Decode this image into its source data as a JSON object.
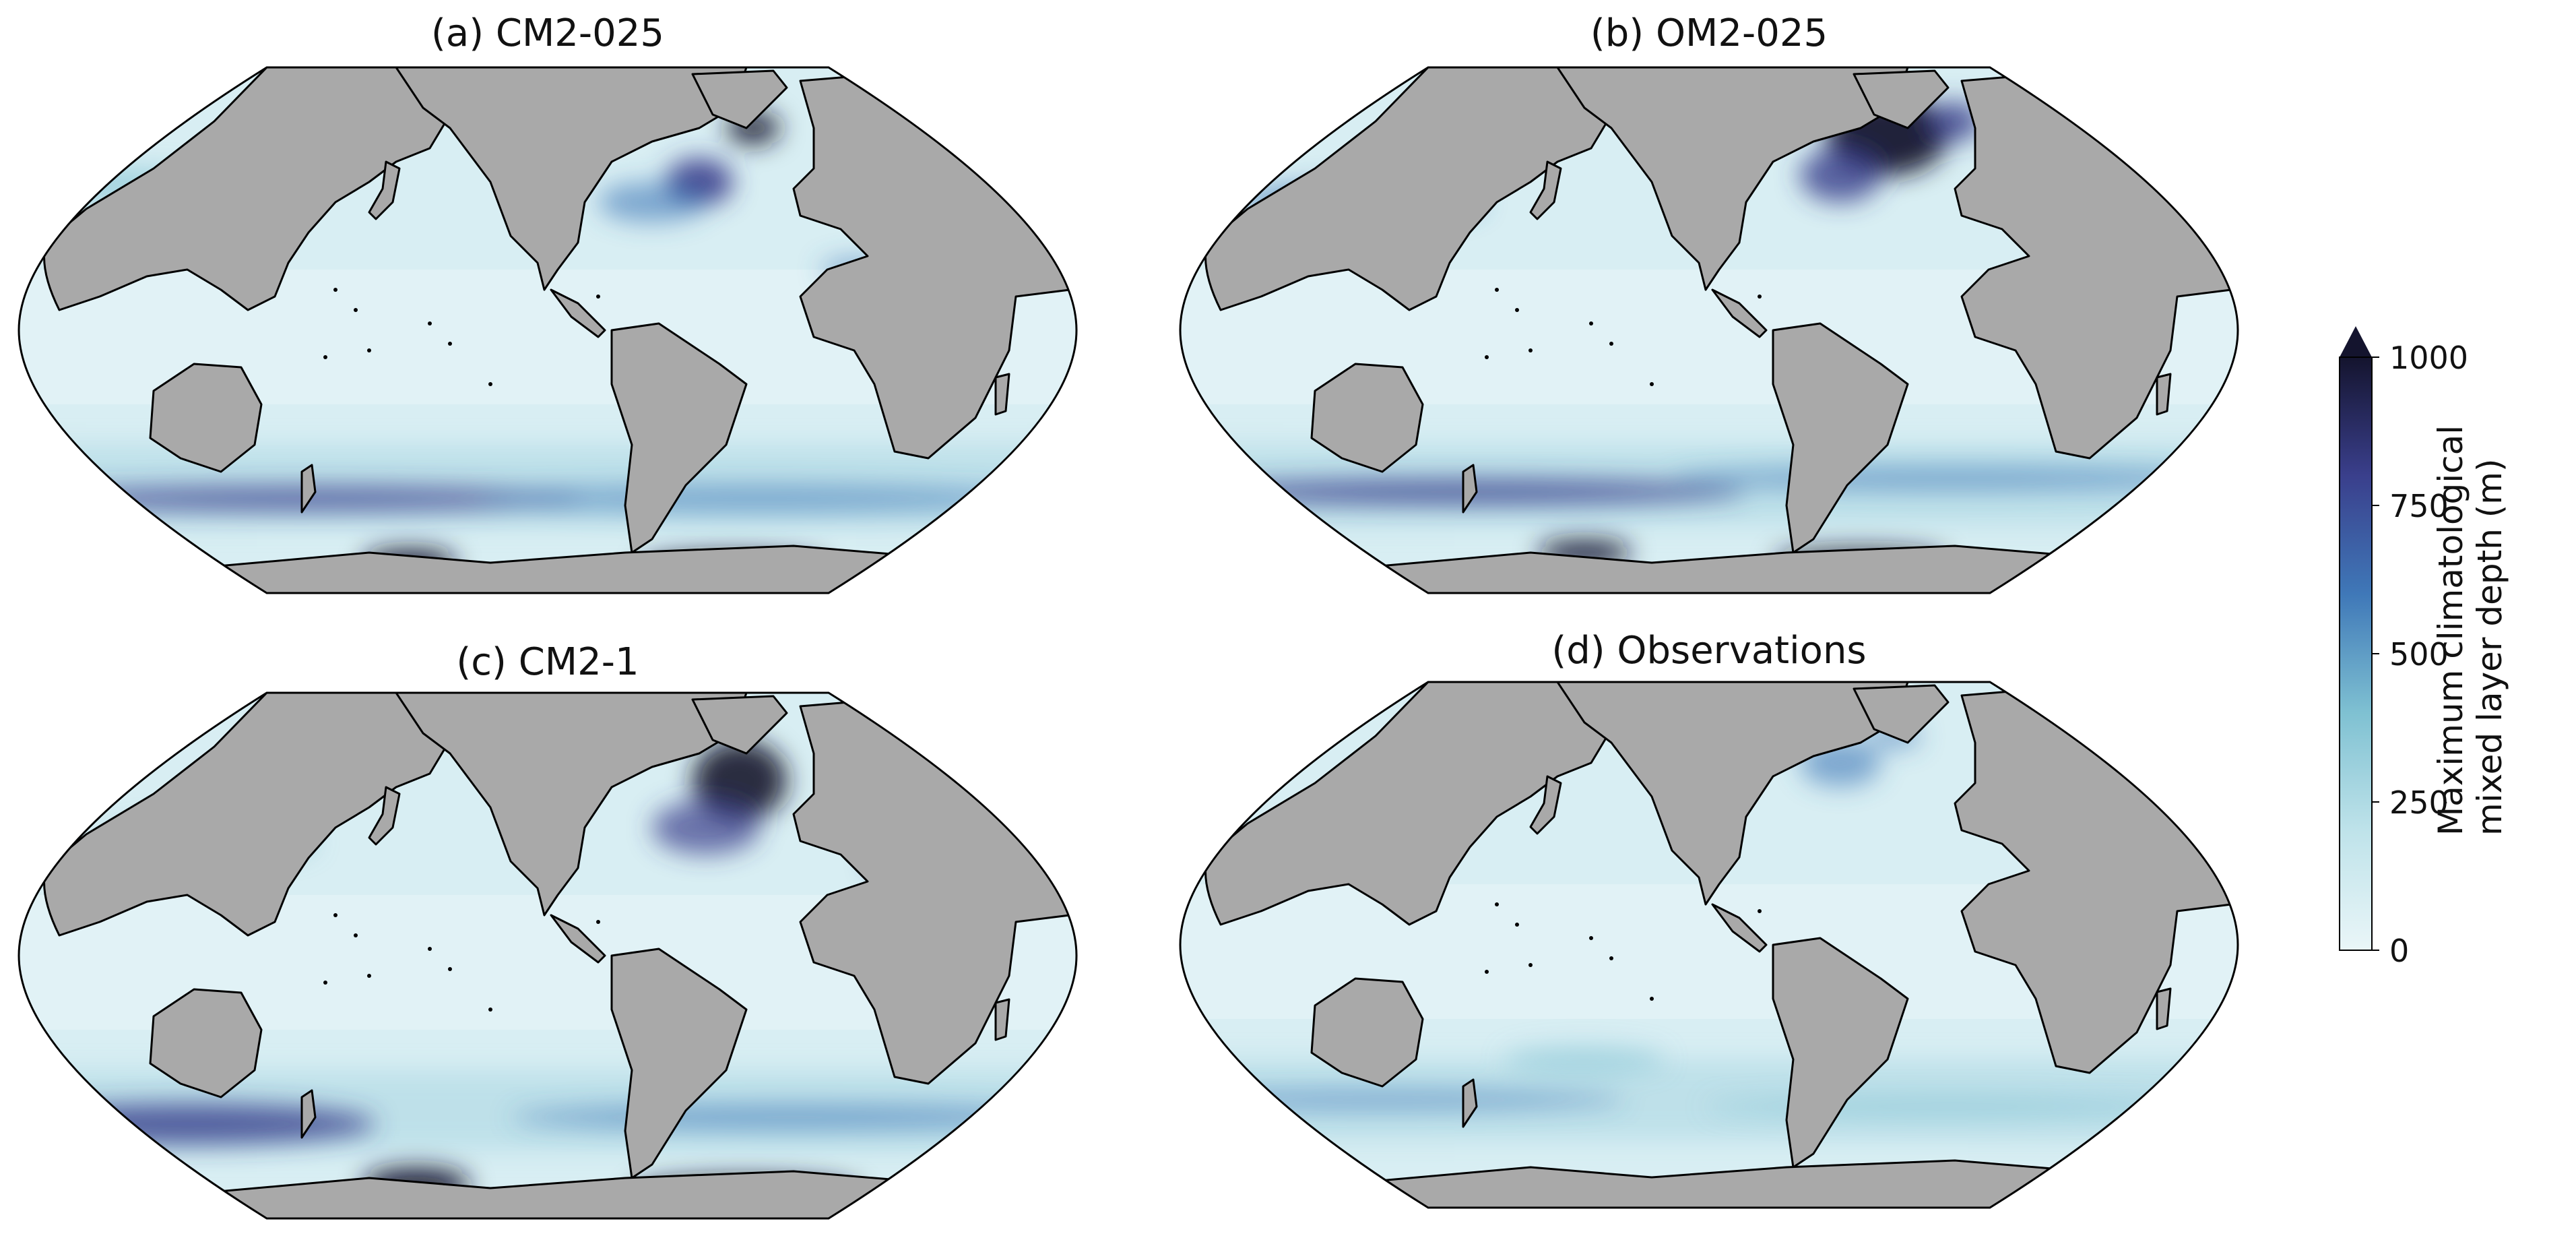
{
  "figure": {
    "panels": [
      {
        "id": "a",
        "title": "(a) CM2-025"
      },
      {
        "id": "b",
        "title": "(b) OM2-025"
      },
      {
        "id": "c",
        "title": "(c) CM2-1"
      },
      {
        "id": "d",
        "title": "(d) Observations"
      }
    ],
    "colorbar": {
      "label_line1": "Maximum climatological",
      "label_line2": "mixed layer depth (m)",
      "ticks": [
        "0",
        "250",
        "500",
        "750",
        "1000"
      ],
      "range": [
        0,
        1000
      ],
      "extend": "max",
      "colors": [
        "#eaf6f8",
        "#bfe3ea",
        "#7fc1d2",
        "#3f78b8",
        "#3a3f8c",
        "#14142e"
      ]
    }
  },
  "map_style": {
    "projection": "Robinson",
    "land_color": "#a9a9a9",
    "ocean_base_color": "#d8eef3",
    "coastline_color": "#000000"
  }
}
